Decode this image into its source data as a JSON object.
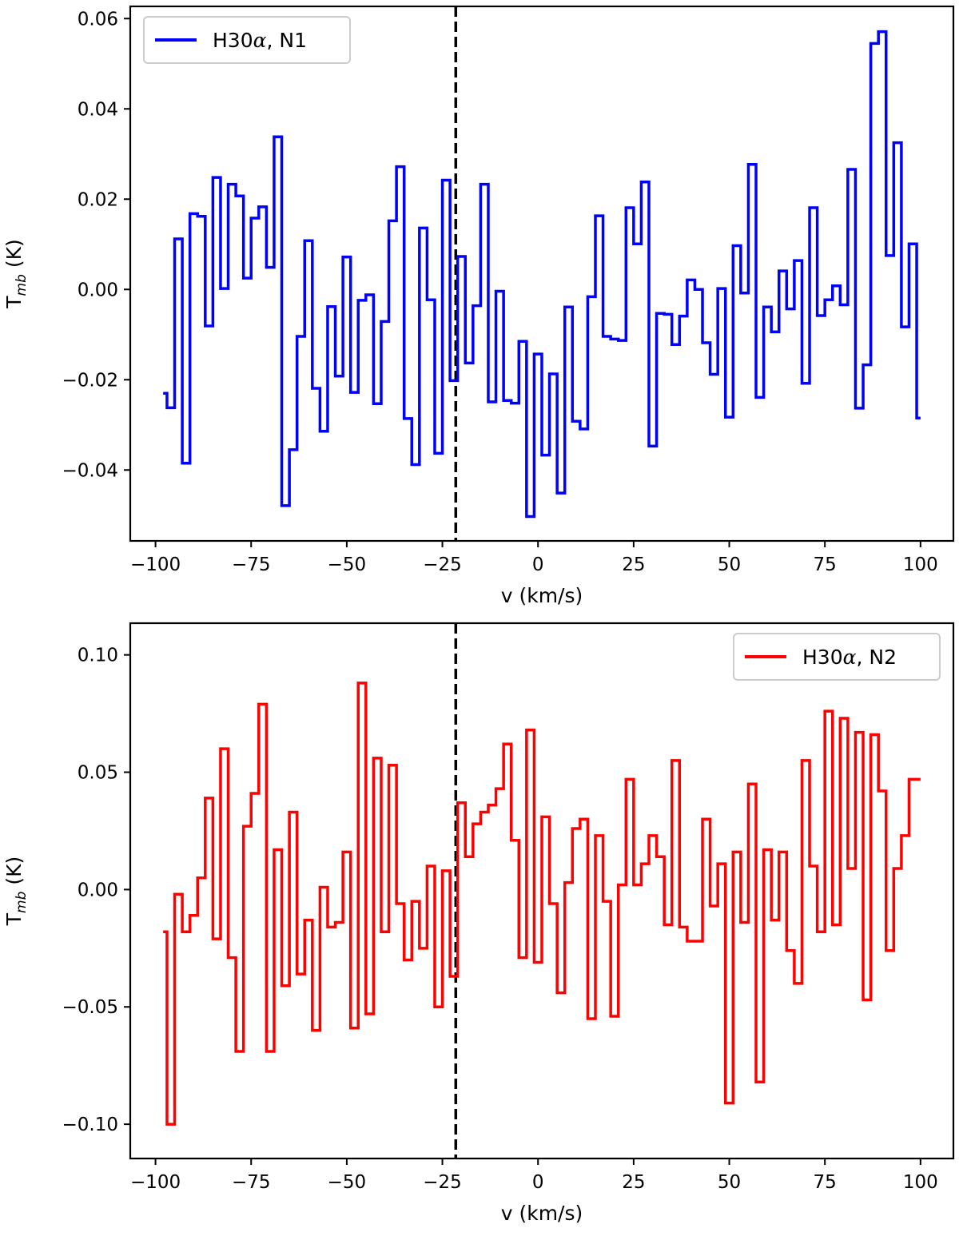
{
  "chart_data": [
    {
      "type": "line",
      "drawstyle": "steps-mid",
      "title": "",
      "xlabel": "v (km/s)",
      "ylabel_main": "T",
      "ylabel_sub": "mb",
      "ylabel_unit": " (K)",
      "xlim": [
        -106.6,
        108.6
      ],
      "ylim": [
        -0.0557,
        0.0627
      ],
      "xticks": [
        -100,
        -75,
        -50,
        -25,
        0,
        25,
        50,
        75,
        100
      ],
      "xtick_labels": [
        "−100",
        "−75",
        "−50",
        "−25",
        "0",
        "25",
        "50",
        "75",
        "100"
      ],
      "yticks": [
        -0.04,
        -0.02,
        0.0,
        0.02,
        0.04,
        0.06
      ],
      "ytick_labels": [
        "−0.04",
        "−0.02",
        "0.00",
        "0.02",
        "0.04",
        "0.06"
      ],
      "vline_x": -21.5,
      "legend_loc": "upper left",
      "series": [
        {
          "name": "H30α, N1",
          "legend_main": "H30",
          "legend_alpha": "α",
          "legend_rest": ", N1",
          "color": "#0000ff",
          "x": [
            -98.0,
            -96.0,
            -94.0,
            -92.0,
            -90.0,
            -88.0,
            -86.0,
            -84.0,
            -82.0,
            -80.0,
            -78.0,
            -76.0,
            -74.0,
            -72.0,
            -70.0,
            -68.0,
            -66.0,
            -64.0,
            -62.0,
            -60.0,
            -58.0,
            -56.0,
            -54.0,
            -52.0,
            -50.0,
            -48.0,
            -46.0,
            -44.0,
            -42.0,
            -40.0,
            -38.0,
            -36.0,
            -34.0,
            -32.0,
            -30.0,
            -28.0,
            -26.0,
            -24.0,
            -22.0,
            -20.0,
            -18.0,
            -16.0,
            -14.0,
            -12.0,
            -10.0,
            -8.0,
            -6.0,
            -4.0,
            -2.0,
            0.0,
            2.0,
            4.0,
            6.0,
            8.0,
            10.0,
            12.0,
            14.0,
            16.0,
            18.0,
            20.0,
            22.0,
            24.0,
            26.0,
            28.0,
            30.0,
            32.0,
            34.0,
            36.0,
            38.0,
            40.0,
            42.0,
            44.0,
            46.0,
            48.0,
            50.0,
            52.0,
            54.0,
            56.0,
            58.0,
            60.0,
            62.0,
            64.0,
            66.0,
            68.0,
            70.0,
            72.0,
            74.0,
            76.0,
            78.0,
            80.0,
            82.0,
            84.0,
            86.0,
            88.0,
            90.0,
            92.0,
            94.0,
            96.0,
            98.0,
            100.0
          ],
          "y": [
            -0.023,
            -0.0262,
            0.0112,
            -0.0385,
            0.0168,
            0.0162,
            -0.0081,
            0.0248,
            0.0002,
            0.0233,
            0.0207,
            0.0025,
            0.0158,
            0.0183,
            0.0049,
            0.0338,
            -0.0479,
            -0.0355,
            -0.0104,
            0.0108,
            -0.0219,
            -0.0314,
            -0.0038,
            -0.0192,
            0.0072,
            -0.0228,
            -0.0024,
            -0.0012,
            -0.0253,
            -0.0071,
            0.0152,
            0.0272,
            -0.0286,
            -0.0388,
            0.0136,
            -0.0023,
            -0.0363,
            0.0242,
            -0.0202,
            0.0073,
            -0.0163,
            -0.0036,
            0.0233,
            -0.0249,
            -0.0004,
            -0.0246,
            -0.0252,
            -0.0115,
            -0.0503,
            -0.0143,
            -0.0367,
            -0.0187,
            -0.0451,
            -0.0039,
            -0.0292,
            -0.0309,
            -0.0016,
            0.0163,
            -0.0104,
            -0.011,
            -0.0113,
            0.0181,
            0.0101,
            0.0238,
            -0.0347,
            -0.0053,
            -0.0055,
            -0.0122,
            -0.0059,
            0.0021,
            0.0,
            -0.0118,
            -0.0188,
            0.0002,
            -0.0283,
            0.0097,
            -0.0008,
            0.0277,
            -0.0239,
            -0.0039,
            -0.0094,
            0.0041,
            -0.0043,
            0.0064,
            -0.0208,
            0.0181,
            -0.0058,
            -0.0023,
            0.0008,
            -0.0034,
            0.0266,
            -0.0263,
            -0.0167,
            0.0545,
            0.0571,
            0.0075,
            0.0325,
            -0.0083,
            0.0101,
            -0.0285
          ]
        }
      ]
    },
    {
      "type": "line",
      "drawstyle": "steps-mid",
      "title": "",
      "xlabel": "v (km/s)",
      "ylabel_main": "T",
      "ylabel_sub": "mb",
      "ylabel_unit": " (K)",
      "xlim": [
        -106.6,
        108.6
      ],
      "ylim": [
        -0.1146,
        0.1135
      ],
      "xticks": [
        -100,
        -75,
        -50,
        -25,
        0,
        25,
        50,
        75,
        100
      ],
      "xtick_labels": [
        "−100",
        "−75",
        "−50",
        "−25",
        "0",
        "25",
        "50",
        "75",
        "100"
      ],
      "yticks": [
        -0.1,
        -0.05,
        0.0,
        0.05,
        0.1
      ],
      "ytick_labels": [
        "−0.10",
        "−0.05",
        "0.00",
        "0.05",
        "0.10"
      ],
      "vline_x": -21.5,
      "legend_loc": "upper right",
      "series": [
        {
          "name": "H30α, N2",
          "legend_main": "H30",
          "legend_alpha": "α",
          "legend_rest": ", N2",
          "color": "#ff0000",
          "x": [
            -98.0,
            -96.0,
            -94.0,
            -92.0,
            -90.0,
            -88.0,
            -86.0,
            -84.0,
            -82.0,
            -80.0,
            -78.0,
            -76.0,
            -74.0,
            -72.0,
            -70.0,
            -68.0,
            -66.0,
            -64.0,
            -62.0,
            -60.0,
            -58.0,
            -56.0,
            -54.0,
            -52.0,
            -50.0,
            -48.0,
            -46.0,
            -44.0,
            -42.0,
            -40.0,
            -38.0,
            -36.0,
            -34.0,
            -32.0,
            -30.0,
            -28.0,
            -26.0,
            -24.0,
            -22.0,
            -20.0,
            -18.0,
            -16.0,
            -14.0,
            -12.0,
            -10.0,
            -8.0,
            -6.0,
            -4.0,
            -2.0,
            0.0,
            2.0,
            4.0,
            6.0,
            8.0,
            10.0,
            12.0,
            14.0,
            16.0,
            18.0,
            20.0,
            22.0,
            24.0,
            26.0,
            28.0,
            30.0,
            32.0,
            34.0,
            36.0,
            38.0,
            40.0,
            42.0,
            44.0,
            46.0,
            48.0,
            50.0,
            52.0,
            54.0,
            56.0,
            58.0,
            60.0,
            62.0,
            64.0,
            66.0,
            68.0,
            70.0,
            72.0,
            74.0,
            76.0,
            78.0,
            80.0,
            82.0,
            84.0,
            86.0,
            88.0,
            90.0,
            92.0,
            94.0,
            96.0,
            98.0,
            100.0
          ],
          "y": [
            -0.018,
            -0.1,
            -0.002,
            -0.018,
            -0.011,
            0.005,
            0.039,
            -0.021,
            0.06,
            -0.029,
            -0.069,
            0.027,
            0.041,
            0.079,
            -0.069,
            0.017,
            -0.041,
            0.033,
            -0.036,
            -0.013,
            -0.06,
            0.001,
            -0.016,
            -0.014,
            0.016,
            -0.059,
            0.088,
            -0.053,
            0.056,
            -0.018,
            0.053,
            -0.006,
            -0.03,
            -0.005,
            -0.025,
            0.01,
            -0.05,
            0.008,
            -0.037,
            0.037,
            0.014,
            0.028,
            0.033,
            0.036,
            0.043,
            0.062,
            0.021,
            -0.029,
            0.068,
            -0.031,
            0.031,
            -0.006,
            -0.044,
            0.003,
            0.026,
            0.03,
            -0.055,
            0.023,
            -0.005,
            -0.054,
            0.002,
            0.047,
            0.002,
            0.011,
            0.023,
            0.014,
            -0.015,
            0.055,
            -0.016,
            -0.022,
            -0.022,
            0.03,
            -0.007,
            0.011,
            -0.091,
            0.016,
            -0.014,
            0.045,
            -0.082,
            0.017,
            -0.013,
            0.016,
            -0.026,
            -0.04,
            0.055,
            0.01,
            -0.018,
            0.076,
            -0.015,
            0.073,
            0.009,
            0.067,
            -0.047,
            0.066,
            0.042,
            -0.026,
            0.009,
            0.023,
            0.047,
            0.047
          ]
        }
      ]
    }
  ]
}
